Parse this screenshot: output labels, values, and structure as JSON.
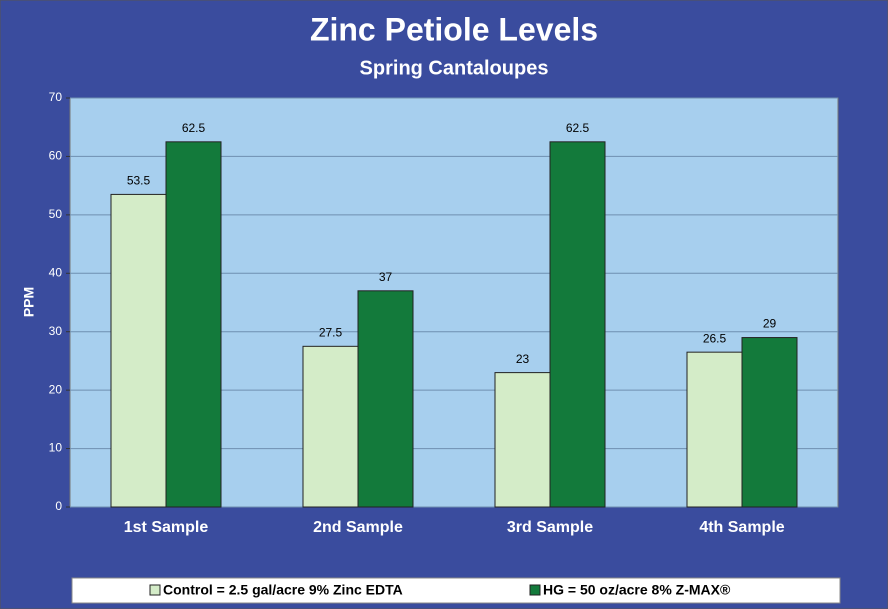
{
  "chart_data": {
    "type": "bar",
    "title": "Zinc Petiole Levels",
    "subtitle": "Spring Cantaloupes",
    "y_label": "PPM",
    "categories": [
      "1st Sample",
      "2nd Sample",
      "3rd Sample",
      "4th Sample"
    ],
    "series": [
      {
        "name": "Control = 2.5 gal/acre 9% Zinc EDTA",
        "color": "#d4ecc8",
        "values": [
          53.5,
          27.5,
          23,
          26.5
        ]
      },
      {
        "name": "HG = 50 oz/acre 8% Z-MAX®",
        "color": "#137a3b",
        "values": [
          62.5,
          37,
          62.5,
          29
        ]
      }
    ],
    "ylim": [
      0,
      70
    ],
    "yticks": [
      0,
      10,
      20,
      30,
      40,
      50,
      60,
      70
    ],
    "grid": true,
    "legend": "bottom"
  }
}
